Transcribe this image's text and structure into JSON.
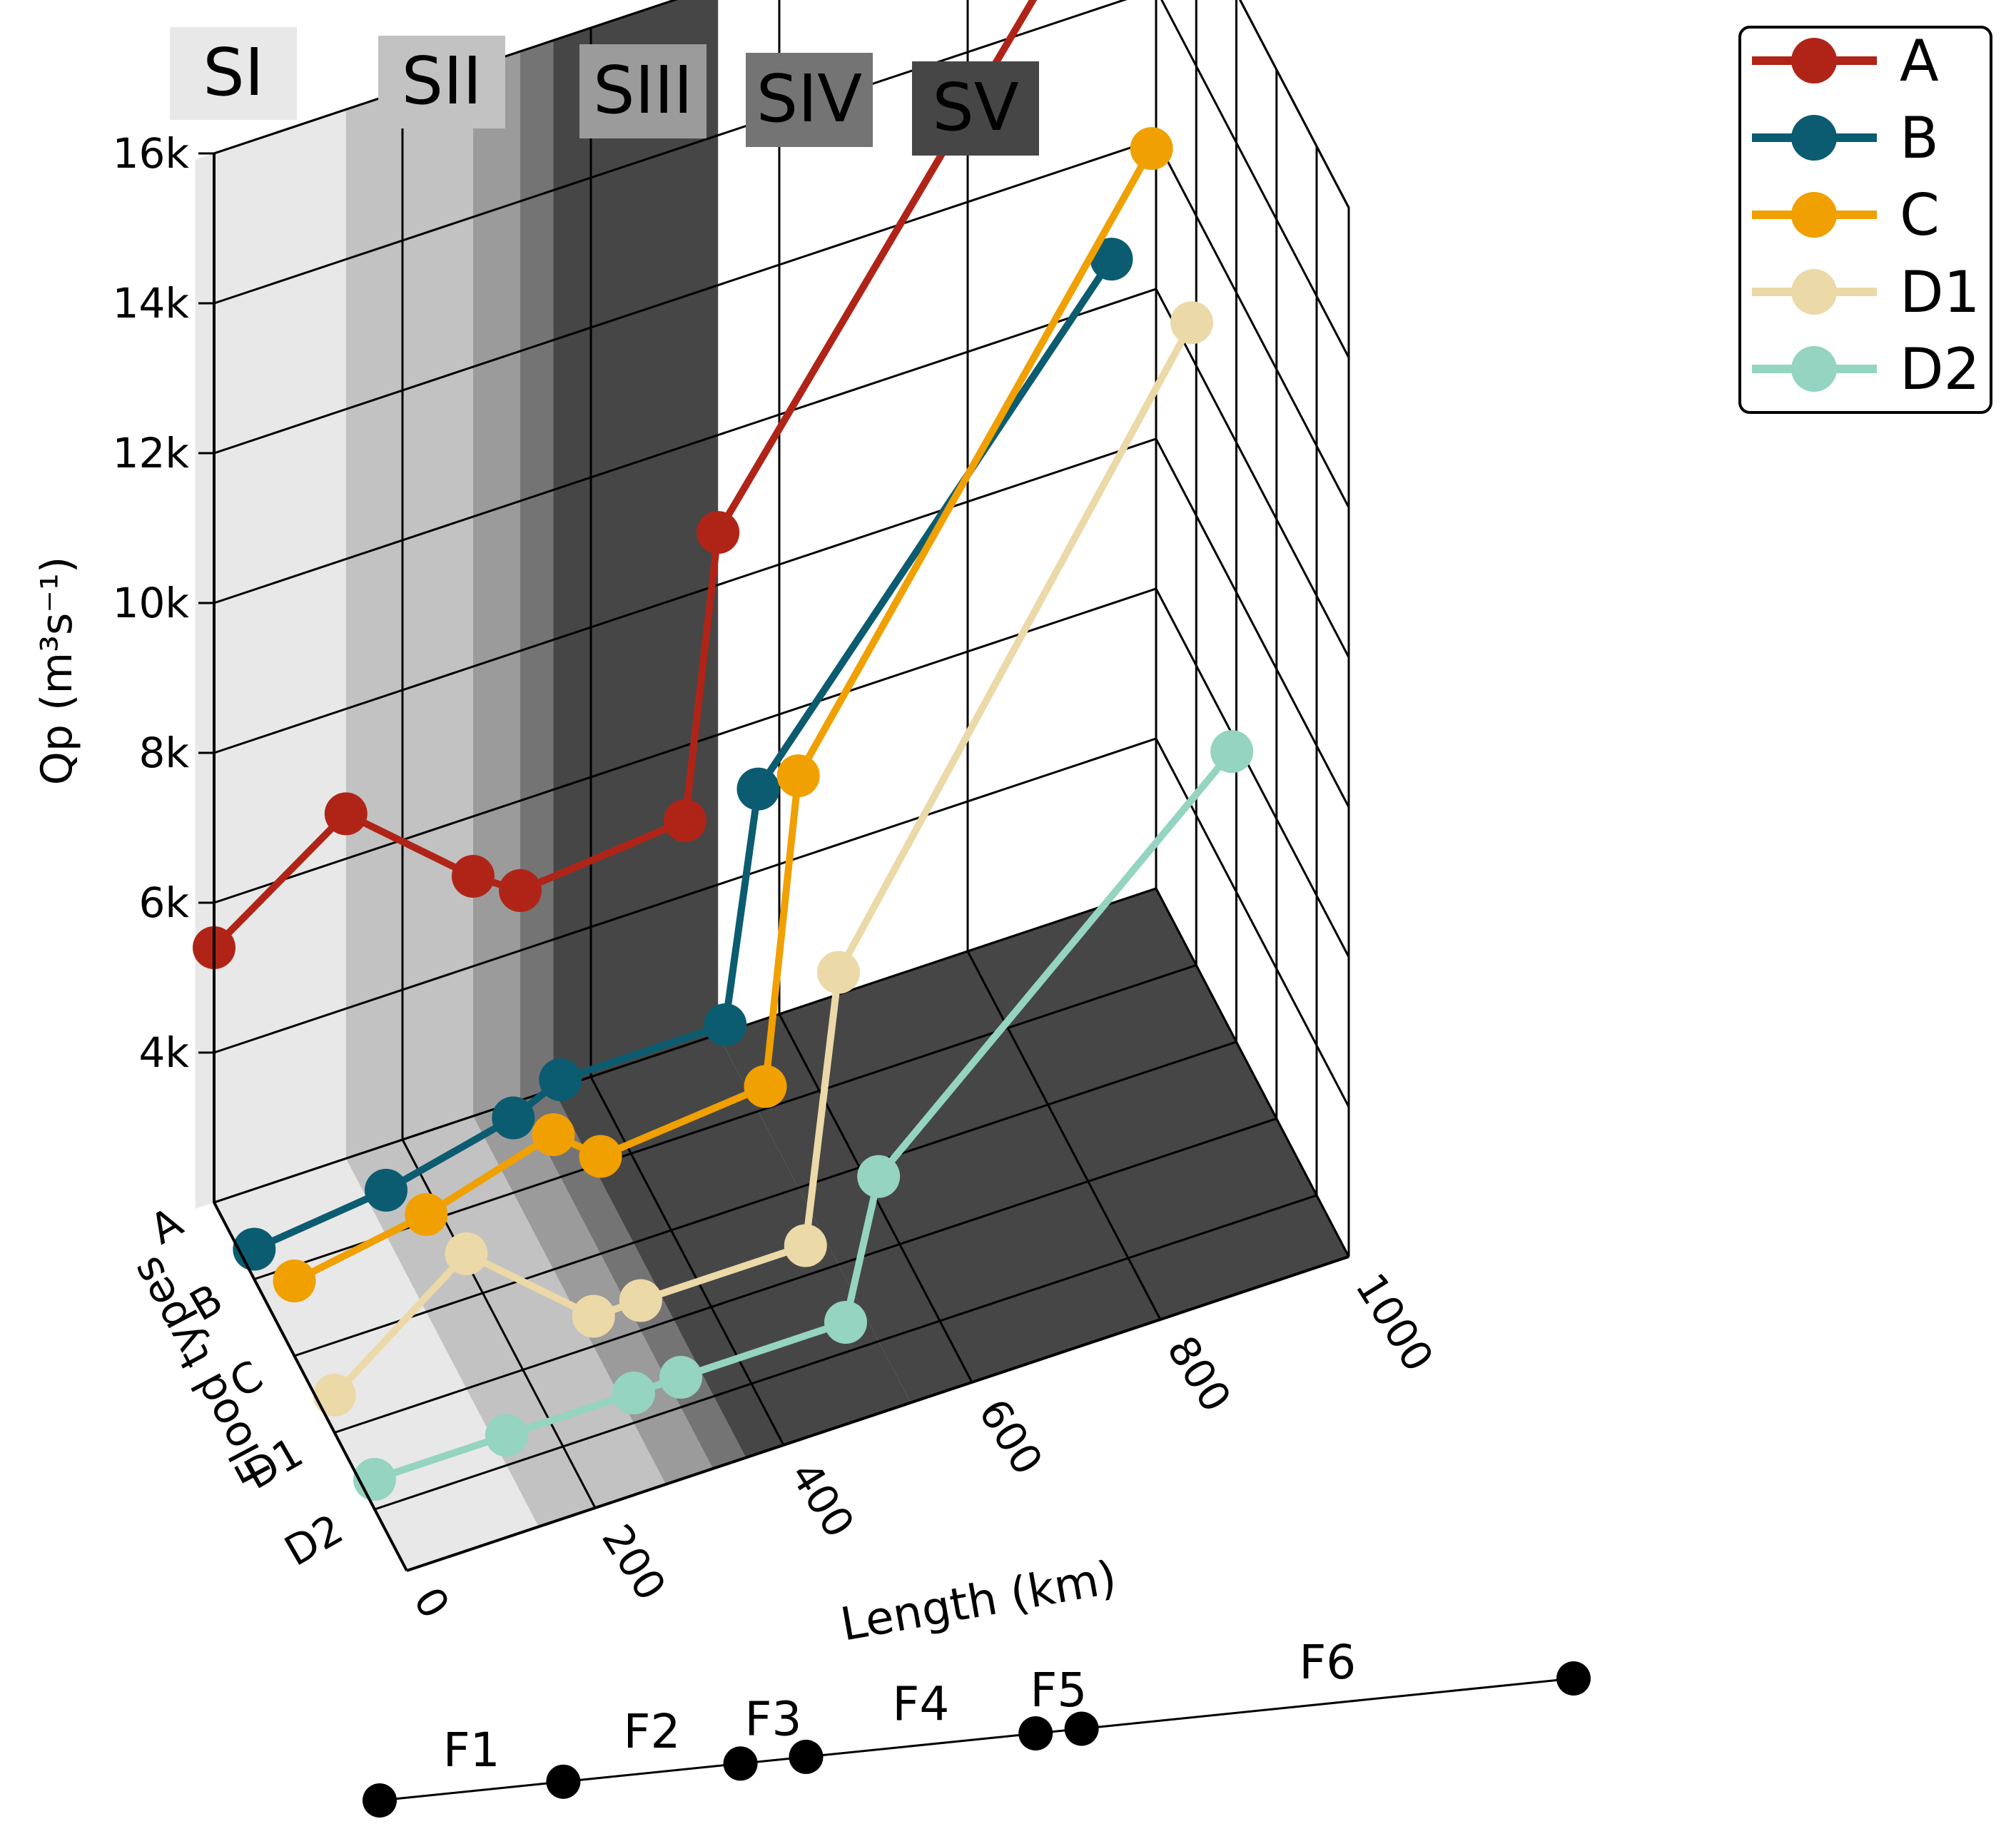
{
  "stage_labels": [
    "SI",
    "SII",
    "SIII",
    "SIV",
    "SV"
  ],
  "stage_colors": [
    "#e8e8e8",
    "#c2c2c2",
    "#9b9b9b",
    "#747474",
    "#464646"
  ],
  "axis_labels": {
    "y_label": "Qp (m³s⁻¹)",
    "x_label": "Length (km)",
    "z_label": "Flood types"
  },
  "y_ticks": [
    "4k",
    "6k",
    "8k",
    "10k",
    "12k",
    "14k",
    "16k"
  ],
  "x_ticks": [
    "0",
    "200",
    "400",
    "600",
    "800",
    "1000"
  ],
  "z_ticks": [
    "A",
    "B",
    "C",
    "D1",
    "D2"
  ],
  "legend": [
    {
      "label": "A",
      "color": "#b02418"
    },
    {
      "label": "B",
      "color": "#0b5c70"
    },
    {
      "label": "C",
      "color": "#f0a000"
    },
    {
      "label": "D1",
      "color": "#ecd9a8"
    },
    {
      "label": "D2",
      "color": "#94d4c0"
    }
  ],
  "segments": {
    "labels": [
      "F1",
      "F2",
      "F3",
      "F4",
      "F5",
      "F6"
    ],
    "boundaries_km": [
      0,
      140,
      275,
      325,
      500,
      535,
      910
    ]
  },
  "chart_data": {
    "type": "line",
    "projection": "3d",
    "xlabel": "Length (km)",
    "ylabel": "Qp (m³s⁻¹)",
    "zlabel": "Flood types",
    "xlim": [
      0,
      1000
    ],
    "ylim": [
      2000,
      16000
    ],
    "z_categories": [
      "A",
      "B",
      "C",
      "D1",
      "D2"
    ],
    "stages": [
      {
        "name": "SI",
        "range_km": [
          0,
          140
        ]
      },
      {
        "name": "SII",
        "range_km": [
          140,
          275
        ]
      },
      {
        "name": "SIII",
        "range_km": [
          275,
          325
        ]
      },
      {
        "name": "SIV",
        "range_km": [
          325,
          360
        ]
      },
      {
        "name": "SV",
        "range_km": [
          360,
          535
        ]
      }
    ],
    "series": [
      {
        "name": "A",
        "z": "A",
        "x": [
          0,
          140,
          275,
          325,
          500,
          535,
          910
        ],
        "y": [
          5400,
          6600,
          5200,
          4800,
          5000,
          8700,
          15100
        ]
      },
      {
        "name": "B",
        "z": "B",
        "x": [
          0,
          140,
          275,
          325,
          500,
          535,
          910
        ],
        "y": [
          2400,
          2600,
          3000,
          3300,
          3300,
          6300,
          11800
        ]
      },
      {
        "name": "C",
        "z": "C",
        "x": [
          0,
          140,
          275,
          325,
          500,
          535,
          910
        ],
        "y": [
          3000,
          3300,
          3800,
          3300,
          3500,
          7500,
          14300
        ]
      },
      {
        "name": "D1",
        "z": "D1",
        "x": [
          0,
          140,
          275,
          325,
          500,
          535,
          910
        ],
        "y": [
          2500,
          3800,
          2400,
          2400,
          2400,
          5900,
          13000
        ]
      },
      {
        "name": "D2",
        "z": "D2",
        "x": [
          0,
          140,
          275,
          325,
          500,
          535,
          910
        ],
        "y": [
          2400,
          2400,
          2400,
          2400,
          2400,
          4200,
          8300
        ]
      }
    ]
  }
}
